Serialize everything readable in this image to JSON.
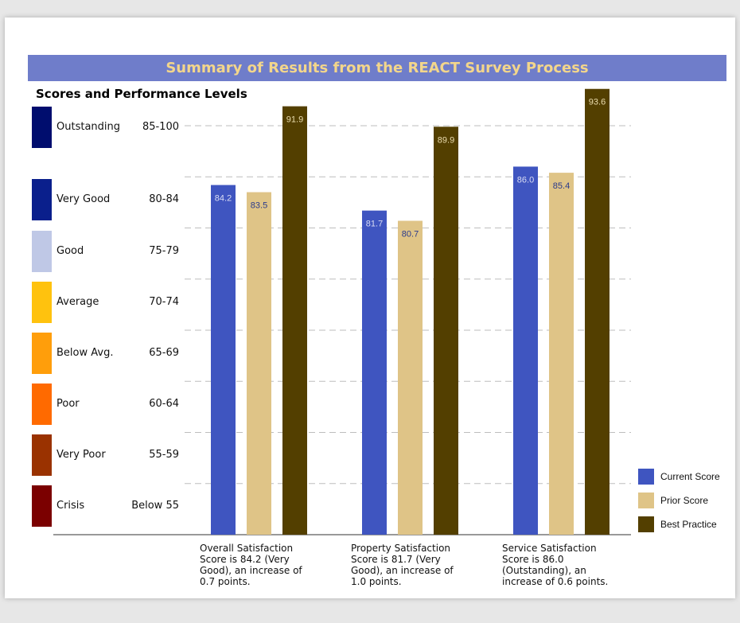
{
  "header": {
    "title": "Summary of Results from the REACT Survey Process",
    "subtitle": "Scores and Performance Levels"
  },
  "levels": [
    {
      "name": "Outstanding",
      "range": "85-100",
      "color": "#000d6e"
    },
    {
      "name": "Very Good",
      "range": "80-84",
      "color": "#0a1f8c"
    },
    {
      "name": "Good",
      "range": "75-79",
      "color": "#bfc8e6"
    },
    {
      "name": "Average",
      "range": "70-74",
      "color": "#ffc20e"
    },
    {
      "name": "Below Avg.",
      "range": "65-69",
      "color": "#ff9e0b"
    },
    {
      "name": "Poor",
      "range": "60-64",
      "color": "#ff6a00"
    },
    {
      "name": "Very Poor",
      "range": "55-59",
      "color": "#9a3200"
    },
    {
      "name": "Crisis",
      "range": "Below 55",
      "color": "#7b0000"
    }
  ],
  "captions": [
    {
      "lines": [
        "Overall Satisfaction",
        "Score is 84.2 (Very",
        "Good), an increase of",
        "0.7 points."
      ]
    },
    {
      "lines": [
        "Property Satisfaction",
        "Score is 81.7 (Very",
        "Good), an increase of",
        "1.0 points."
      ]
    },
    {
      "lines": [
        "Service Satisfaction",
        "Score is 86.0",
        "(Outstanding), an",
        "increase of 0.6 points."
      ]
    }
  ],
  "chart_data": {
    "type": "bar",
    "categories": [
      "Overall Satisfaction",
      "Property Satisfaction",
      "Service Satisfaction"
    ],
    "series": [
      {
        "name": "Current Score",
        "values": [
          84.2,
          81.7,
          86.0
        ],
        "color": "#3f55c0",
        "label_color": "#d9dcf3"
      },
      {
        "name": "Prior Score",
        "values": [
          83.5,
          80.7,
          85.4
        ],
        "color": "#dfc487",
        "label_color": "#2a3a8c"
      },
      {
        "name": "Best Practice",
        "values": [
          91.9,
          89.9,
          93.6
        ],
        "color": "#533f00",
        "label_color": "#eadcae"
      }
    ],
    "ylim": [
      50,
      100
    ],
    "gridlines": [
      55,
      60,
      65,
      70,
      75,
      80,
      85,
      90
    ],
    "grid": true,
    "legend_position": "bottom-right"
  }
}
